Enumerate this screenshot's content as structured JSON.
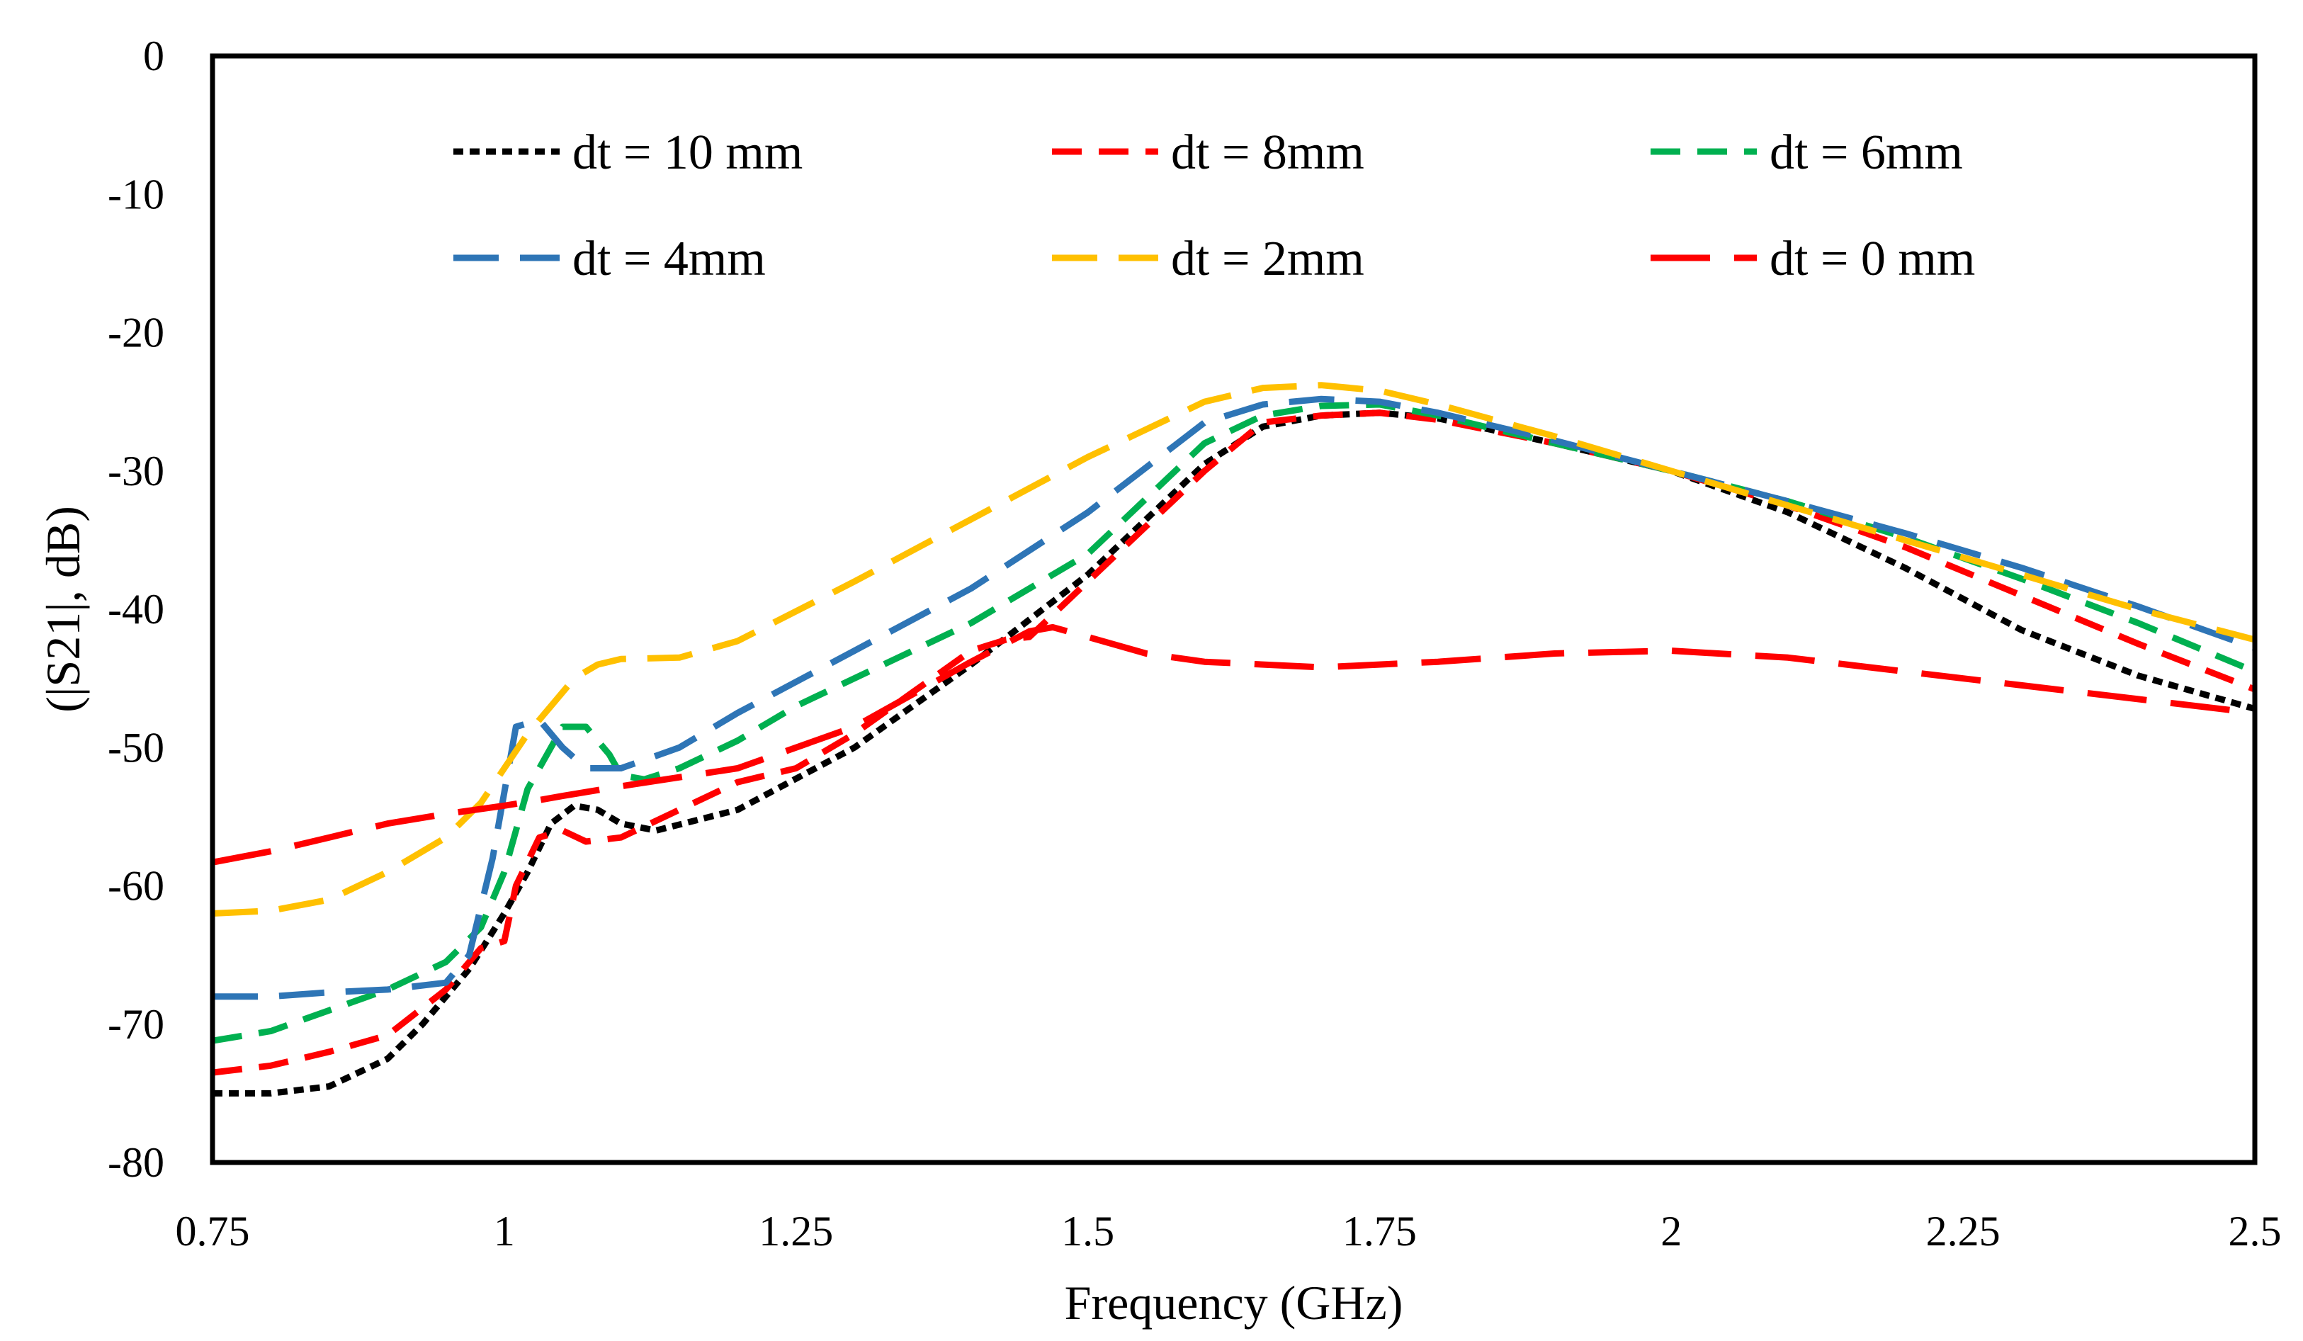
{
  "colors": {
    "background": "#ffffff",
    "axis": "#000000"
  },
  "chart_data": {
    "type": "line",
    "title": "",
    "xlabel": "Frequency (GHz)",
    "ylabel": "(|S21|, dB)",
    "xlim": [
      0.75,
      2.5
    ],
    "ylim": [
      -80,
      0
    ],
    "xticks": [
      "0.75",
      "1",
      "1.25",
      "1.5",
      "1.75",
      "2",
      "2.25",
      "2.5"
    ],
    "yticks": [
      "0",
      "-10",
      "-20",
      "-30",
      "-40",
      "-50",
      "-60",
      "-70",
      "-80"
    ],
    "grid": false,
    "legend_position": "top",
    "series": [
      {
        "name": "dt = 10 mm",
        "color": "#000000",
        "dash": "short",
        "x": [
          0.75,
          0.8,
          0.85,
          0.9,
          0.93,
          0.95,
          0.97,
          1.0,
          1.02,
          1.04,
          1.06,
          1.08,
          1.1,
          1.13,
          1.2,
          1.3,
          1.4,
          1.5,
          1.6,
          1.65,
          1.7,
          1.75,
          1.8,
          1.9,
          2.0,
          2.1,
          2.2,
          2.3,
          2.4,
          2.5
        ],
        "y": [
          -75,
          -75,
          -74.5,
          -72.5,
          -70,
          -68,
          -66,
          -62,
          -59,
          -55.5,
          -54.2,
          -54.5,
          -55.5,
          -56,
          -54.5,
          -50,
          -44,
          -37.5,
          -29.5,
          -26.8,
          -26,
          -25.8,
          -26.2,
          -28,
          -30,
          -33,
          -37,
          -41.5,
          -44.8,
          -47.2
        ]
      },
      {
        "name": "dt = 8mm",
        "color": "#ff0000",
        "dash": "medium",
        "x": [
          0.75,
          0.8,
          0.85,
          0.9,
          0.95,
          0.98,
          1.0,
          1.01,
          1.03,
          1.05,
          1.07,
          1.1,
          1.15,
          1.2,
          1.25,
          1.3,
          1.35,
          1.4,
          1.43,
          1.45,
          1.5,
          1.6,
          1.65,
          1.7,
          1.75,
          1.8,
          1.9,
          2.0,
          2.1,
          2.2,
          2.3,
          2.4,
          2.5
        ],
        "y": [
          -73.5,
          -73,
          -72,
          -70.8,
          -67.5,
          -64.5,
          -64,
          -60,
          -56.5,
          -56,
          -56.8,
          -56.5,
          -54.5,
          -52.5,
          -51.5,
          -49,
          -46,
          -43,
          -42.2,
          -42,
          -38,
          -30,
          -26.5,
          -26,
          -25.8,
          -26.3,
          -28,
          -30,
          -32.5,
          -35.5,
          -39,
          -42.5,
          -45.8
        ]
      },
      {
        "name": "dt = 6mm",
        "color": "#00b050",
        "dash": "medium",
        "x": [
          0.75,
          0.8,
          0.85,
          0.9,
          0.95,
          0.98,
          1.0,
          1.02,
          1.05,
          1.07,
          1.09,
          1.1,
          1.12,
          1.15,
          1.2,
          1.25,
          1.3,
          1.4,
          1.5,
          1.6,
          1.65,
          1.7,
          1.75,
          1.8,
          1.9,
          2.0,
          2.1,
          2.2,
          2.3,
          2.4,
          2.5
        ],
        "y": [
          -71.2,
          -70.5,
          -69,
          -67.5,
          -65.5,
          -63,
          -59,
          -53,
          -48.5,
          -48.5,
          -50.5,
          -52,
          -52.3,
          -51.5,
          -49.5,
          -47,
          -45,
          -41,
          -36,
          -28,
          -26,
          -25.3,
          -25.2,
          -26,
          -28,
          -30,
          -32.2,
          -34.8,
          -37.8,
          -41,
          -44.5
        ]
      },
      {
        "name": "dt = 4mm",
        "color": "#2e75b6",
        "dash": "long",
        "x": [
          0.75,
          0.8,
          0.85,
          0.9,
          0.95,
          0.97,
          0.99,
          1.01,
          1.03,
          1.05,
          1.07,
          1.1,
          1.15,
          1.2,
          1.3,
          1.4,
          1.5,
          1.6,
          1.65,
          1.7,
          1.75,
          1.8,
          1.9,
          2.0,
          2.1,
          2.2,
          2.3,
          2.4,
          2.5
        ],
        "y": [
          -68,
          -68,
          -67.7,
          -67.5,
          -67,
          -65,
          -58,
          -48.5,
          -48,
          -50,
          -51.5,
          -51.5,
          -50,
          -47.5,
          -43,
          -38.5,
          -33,
          -26.5,
          -25.2,
          -24.8,
          -25,
          -25.8,
          -27.8,
          -30,
          -32.2,
          -34.5,
          -37,
          -39.8,
          -42.8
        ]
      },
      {
        "name": "dt = 2mm",
        "color": "#ffc000",
        "dash": "long",
        "x": [
          0.75,
          0.8,
          0.85,
          0.9,
          0.95,
          0.98,
          1.0,
          1.02,
          1.04,
          1.06,
          1.08,
          1.1,
          1.15,
          1.2,
          1.3,
          1.4,
          1.5,
          1.6,
          1.65,
          1.7,
          1.75,
          1.8,
          1.9,
          2.0,
          2.1,
          2.2,
          2.3,
          2.4,
          2.5
        ],
        "y": [
          -62,
          -61.8,
          -61,
          -59,
          -56.5,
          -54,
          -51.5,
          -49,
          -47,
          -45,
          -44,
          -43.6,
          -43.5,
          -42.3,
          -38,
          -33.5,
          -29,
          -25,
          -24,
          -23.8,
          -24.2,
          -25.2,
          -27.5,
          -30,
          -32.5,
          -35,
          -37.5,
          -40,
          -42.2
        ]
      },
      {
        "name": "dt = 0 mm",
        "color": "#ff0000",
        "dash": "xlong",
        "x": [
          0.75,
          0.8,
          0.85,
          0.9,
          0.95,
          1.0,
          1.03,
          1.05,
          1.1,
          1.2,
          1.3,
          1.4,
          1.45,
          1.47,
          1.5,
          1.55,
          1.6,
          1.7,
          1.8,
          1.9,
          2.0,
          2.1,
          2.2,
          2.3,
          2.4,
          2.5
        ],
        "y": [
          -58.3,
          -57.5,
          -56.5,
          -55.5,
          -54.8,
          -54.2,
          -53.8,
          -53.5,
          -52.8,
          -51.5,
          -48.5,
          -43.8,
          -41.6,
          -41.3,
          -42,
          -43.2,
          -43.8,
          -44.2,
          -43.8,
          -43.2,
          -43,
          -43.5,
          -44.5,
          -45.5,
          -46.5,
          -47.5
        ]
      }
    ]
  }
}
